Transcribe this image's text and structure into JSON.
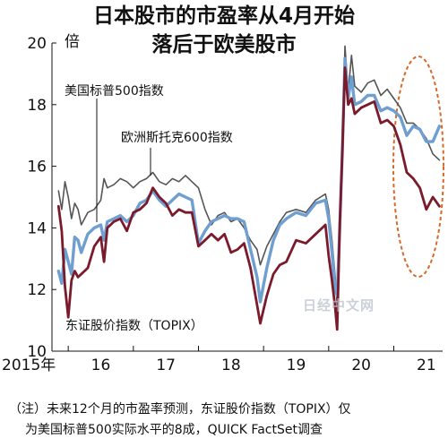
{
  "chart_data": {
    "type": "line",
    "title": [
      "日本股市的市盈率从4月开始",
      "落后于欧美股市"
    ],
    "y_unit": "倍",
    "ylim": [
      10,
      20
    ],
    "y_ticks": [
      "10",
      "12",
      "14",
      "16",
      "18",
      "20"
    ],
    "x_range": [
      2015.75,
      2021.75
    ],
    "x_ticks": [
      {
        "label": "2015年",
        "x": 2016.0
      },
      {
        "label": "16",
        "x": 2016.5
      },
      {
        "label": "17",
        "x": 2017.5
      },
      {
        "label": "18",
        "x": 2018.5
      },
      {
        "label": "19",
        "x": 2019.5
      },
      {
        "label": "20",
        "x": 2020.5
      },
      {
        "label": "21",
        "x": 2021.5
      }
    ],
    "grid": false,
    "series": [
      {
        "name": "欧洲斯托克600指数",
        "color": "#555555",
        "x": [
          2015.85,
          2015.9,
          2015.95,
          2016.0,
          2016.05,
          2016.1,
          2016.15,
          2016.2,
          2016.3,
          2016.4,
          2016.5,
          2016.55,
          2016.6,
          2016.7,
          2016.8,
          2016.9,
          2017.0,
          2017.1,
          2017.2,
          2017.3,
          2017.4,
          2017.5,
          2017.6,
          2017.7,
          2017.8,
          2017.9,
          2018.0,
          2018.1,
          2018.2,
          2018.3,
          2018.4,
          2018.5,
          2018.6,
          2018.7,
          2018.8,
          2018.9,
          2018.95,
          2019.05,
          2019.15,
          2019.25,
          2019.35,
          2019.5,
          2019.65,
          2019.8,
          2019.95,
          2020.0,
          2020.05,
          2020.1,
          2020.13,
          2020.17,
          2020.21,
          2020.25,
          2020.3,
          2020.35,
          2020.4,
          2020.5,
          2020.6,
          2020.7,
          2020.8,
          2020.9,
          2021.0,
          2021.1,
          2021.2,
          2021.3,
          2021.4,
          2021.5,
          2021.6,
          2021.7
        ],
        "values": [
          15.2,
          14.6,
          15.5,
          15.0,
          14.3,
          14.8,
          14.6,
          14.1,
          14.5,
          14.6,
          14.9,
          15.6,
          15.3,
          15.4,
          15.6,
          15.5,
          15.3,
          15.5,
          15.6,
          15.8,
          15.5,
          15.4,
          15.6,
          15.5,
          15.7,
          15.5,
          15.3,
          14.6,
          14.1,
          14.4,
          14.5,
          14.2,
          14.3,
          14.0,
          13.6,
          13.3,
          12.8,
          13.4,
          13.8,
          14.2,
          14.5,
          14.6,
          14.5,
          14.9,
          15.1,
          14.6,
          13.6,
          12.4,
          11.5,
          13.8,
          16.5,
          19.9,
          18.4,
          19.6,
          18.6,
          18.4,
          18.7,
          18.8,
          18.3,
          18.5,
          18.2,
          17.9,
          17.4,
          17.4,
          17.2,
          16.9,
          16.4,
          16.2
        ]
      },
      {
        "name": "美国标普500指数",
        "color": "#6f9fd0",
        "x": [
          2015.85,
          2015.9,
          2015.95,
          2016.0,
          2016.05,
          2016.1,
          2016.15,
          2016.2,
          2016.3,
          2016.4,
          2016.5,
          2016.55,
          2016.6,
          2016.7,
          2016.8,
          2016.9,
          2017.0,
          2017.1,
          2017.2,
          2017.3,
          2017.4,
          2017.5,
          2017.6,
          2017.7,
          2017.8,
          2017.9,
          2018.0,
          2018.1,
          2018.2,
          2018.3,
          2018.4,
          2018.5,
          2018.6,
          2018.7,
          2018.8,
          2018.9,
          2018.95,
          2019.05,
          2019.15,
          2019.25,
          2019.35,
          2019.5,
          2019.65,
          2019.8,
          2019.95,
          2020.0,
          2020.05,
          2020.1,
          2020.13,
          2020.17,
          2020.21,
          2020.25,
          2020.3,
          2020.35,
          2020.4,
          2020.5,
          2020.6,
          2020.7,
          2020.8,
          2020.9,
          2021.0,
          2021.1,
          2021.2,
          2021.3,
          2021.4,
          2021.5,
          2021.6,
          2021.7
        ],
        "values": [
          12.6,
          12.2,
          13.3,
          12.9,
          12.5,
          13.7,
          13.6,
          13.2,
          13.8,
          14.0,
          14.1,
          13.6,
          14.2,
          14.3,
          14.4,
          14.2,
          14.4,
          14.8,
          14.9,
          15.2,
          14.9,
          14.7,
          14.9,
          15.1,
          15.0,
          14.9,
          13.5,
          13.9,
          14.2,
          14.3,
          14.4,
          14.3,
          14.3,
          14.2,
          13.3,
          12.4,
          11.6,
          12.7,
          13.6,
          14.1,
          14.3,
          14.5,
          14.4,
          14.8,
          14.9,
          14.3,
          13.2,
          12.0,
          11.8,
          14.0,
          16.5,
          19.5,
          18.2,
          18.9,
          18.0,
          18.1,
          18.3,
          18.3,
          17.8,
          17.9,
          17.8,
          17.6,
          17.0,
          17.3,
          17.2,
          16.8,
          16.8,
          17.3
        ]
      },
      {
        "name": "东证股价指数（TOPIX）",
        "color": "#7a1a2b",
        "x": [
          2015.85,
          2015.9,
          2015.95,
          2016.0,
          2016.05,
          2016.1,
          2016.15,
          2016.2,
          2016.3,
          2016.4,
          2016.5,
          2016.55,
          2016.6,
          2016.7,
          2016.8,
          2016.9,
          2017.0,
          2017.1,
          2017.2,
          2017.3,
          2017.4,
          2017.5,
          2017.6,
          2017.7,
          2017.8,
          2017.9,
          2018.0,
          2018.1,
          2018.2,
          2018.3,
          2018.4,
          2018.5,
          2018.6,
          2018.7,
          2018.8,
          2018.9,
          2018.95,
          2019.05,
          2019.15,
          2019.25,
          2019.35,
          2019.5,
          2019.65,
          2019.8,
          2019.95,
          2020.0,
          2020.05,
          2020.1,
          2020.13,
          2020.17,
          2020.21,
          2020.25,
          2020.3,
          2020.35,
          2020.4,
          2020.5,
          2020.6,
          2020.7,
          2020.8,
          2020.9,
          2021.0,
          2021.1,
          2021.2,
          2021.3,
          2021.4,
          2021.5,
          2021.6,
          2021.7
        ],
        "values": [
          14.7,
          13.9,
          12.1,
          11.1,
          12.3,
          12.6,
          12.4,
          12.5,
          12.7,
          13.4,
          13.7,
          12.9,
          14.0,
          14.2,
          14.3,
          13.9,
          14.5,
          14.6,
          14.8,
          15.3,
          15.0,
          14.8,
          14.4,
          14.6,
          14.5,
          14.5,
          13.4,
          13.6,
          13.8,
          13.6,
          13.8,
          13.2,
          13.3,
          13.5,
          12.7,
          11.5,
          10.9,
          11.8,
          12.5,
          12.8,
          12.9,
          13.6,
          13.5,
          13.8,
          14.1,
          13.1,
          12.3,
          11.4,
          10.7,
          14.1,
          16.5,
          19.2,
          18.0,
          18.2,
          17.7,
          17.9,
          18.0,
          18.1,
          17.4,
          17.5,
          17.3,
          16.7,
          15.8,
          15.6,
          15.3,
          14.6,
          15.0,
          14.7
        ]
      }
    ],
    "series_labels": [
      "美国标普500指数",
      "欧洲斯托克600指数",
      "东证股价指数（TOPIX）"
    ],
    "annotation": "dashed ellipse highlighting 2021",
    "annotation_color": "#d46a2a",
    "watermark": "日经中文网",
    "footnote": [
      "（注）未来12个月的市盈率预测，东证股价指数（TOPIX）仅",
      "为美国标普500实际水平的8成，QUICK FactSet调查"
    ]
  }
}
